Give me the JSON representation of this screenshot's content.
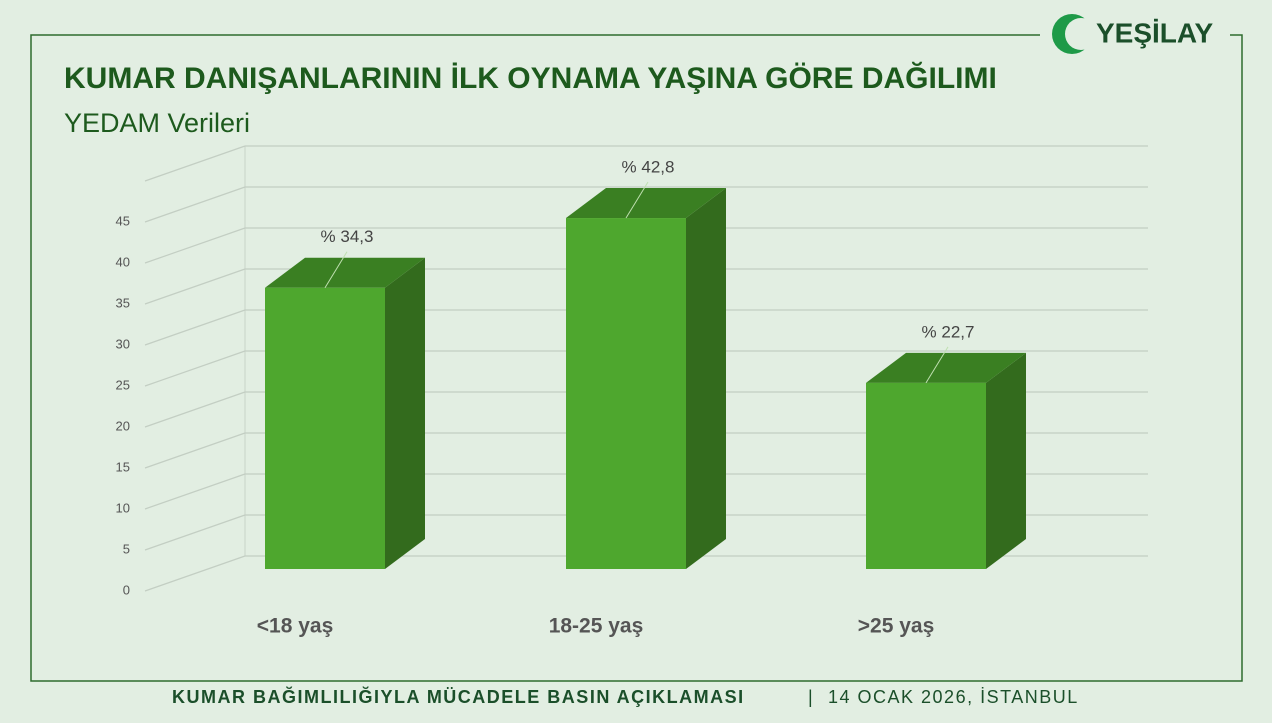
{
  "logo": "YEŞİLAY",
  "footer": {
    "left": "KUMAR BAĞIMLILIĞIYLA MÜCADELE BASIN AÇIKLAMASI",
    "separator": "|",
    "right": "14 OCAK 2026, İSTANBUL"
  },
  "chart_data": {
    "type": "bar3d",
    "title": "KUMAR DANIŞANLARININ İLK OYNAMA YAŞINA GÖRE DAĞILIMI",
    "subtitle": "YEDAM Verileri",
    "categories": [
      "<18 yaş",
      "18-25 yaş",
      ">25 yaş"
    ],
    "values": [
      34.3,
      42.8,
      22.7
    ],
    "value_labels": [
      "% 34,3",
      "% 42,8",
      "% 22,7"
    ],
    "color": "#4ea72e",
    "ylim": [
      0,
      50
    ],
    "yticks": [
      0,
      5,
      10,
      15,
      20,
      25,
      30,
      35,
      40,
      45
    ],
    "grid": true
  }
}
